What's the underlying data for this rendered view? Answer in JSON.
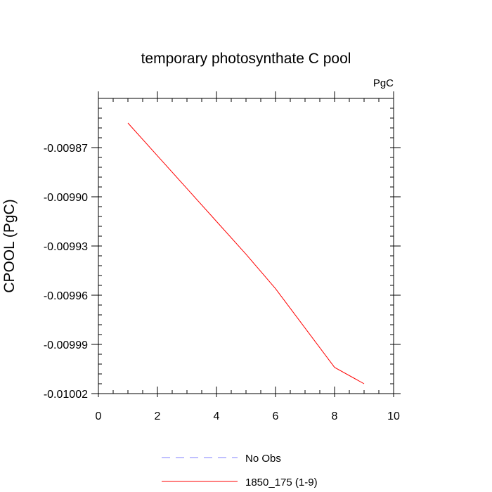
{
  "chart_data": {
    "type": "line",
    "title": "temporary photosynthate C pool",
    "units_label": "PgC",
    "xlabel": "",
    "ylabel": "CPOOL  (PgC)",
    "xlim": [
      0,
      10
    ],
    "ylim": [
      -0.01002,
      -0.00984
    ],
    "x_ticks": [
      0,
      2,
      4,
      6,
      8,
      10
    ],
    "x_tick_labels": [
      "0",
      "2",
      "4",
      "6",
      "8",
      "10"
    ],
    "y_ticks": [
      -0.00987,
      -0.0099,
      -0.00993,
      -0.00996,
      -0.00999,
      -0.01002
    ],
    "y_tick_labels": [
      "-0.00987",
      "-0.00990",
      "-0.00993",
      "-0.00996",
      "-0.00999",
      "-0.01002"
    ],
    "grid": false,
    "legend_placement": "bottom",
    "series": [
      {
        "name": "No Obs",
        "color": "#8080ff",
        "dash": "dashed",
        "x": [],
        "y": []
      },
      {
        "name": "1850_175 (1-9)",
        "color": "#ff0000",
        "dash": "solid",
        "x": [
          1,
          2,
          3,
          4,
          5,
          6,
          7,
          8,
          9
        ],
        "y": [
          -0.009855,
          -0.009875,
          -0.009895,
          -0.009915,
          -0.009935,
          -0.009956,
          -0.00998,
          -0.010004,
          -0.010014
        ]
      }
    ]
  }
}
